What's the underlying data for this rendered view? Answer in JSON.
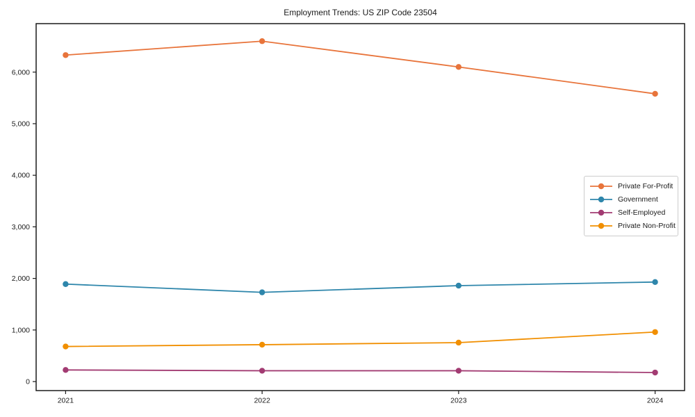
{
  "page": {
    "background": "#ffffff"
  },
  "chart_data": {
    "type": "line",
    "title": "Employment Trends: US ZIP Code 23504",
    "xlabel": "",
    "ylabel": "",
    "x": [
      2021,
      2022,
      2023,
      2024
    ],
    "x_tick_labels": [
      "2021",
      "2022",
      "2023",
      "2024"
    ],
    "y_ticks": [
      0,
      1000,
      2000,
      3000,
      4000,
      5000,
      6000
    ],
    "y_tick_labels": [
      "0",
      "1,000",
      "2,000",
      "3,000",
      "4,000",
      "5,000",
      "6,000"
    ],
    "xlim": [
      2020.85,
      2024.15
    ],
    "ylim": [
      -175,
      6940
    ],
    "grid": false,
    "legend_position": "center-right",
    "axis_color": "#1a1a1a",
    "series": [
      {
        "name": "Private For-Profit",
        "color": "#E8743B",
        "values": [
          6330,
          6600,
          6100,
          5580
        ]
      },
      {
        "name": "Government",
        "color": "#2E86AB",
        "values": [
          1890,
          1730,
          1860,
          1930
        ]
      },
      {
        "name": "Self-Employed",
        "color": "#A23B72",
        "values": [
          225,
          210,
          210,
          175
        ]
      },
      {
        "name": "Private Non-Profit",
        "color": "#F18F01",
        "values": [
          680,
          715,
          755,
          960
        ]
      }
    ]
  }
}
